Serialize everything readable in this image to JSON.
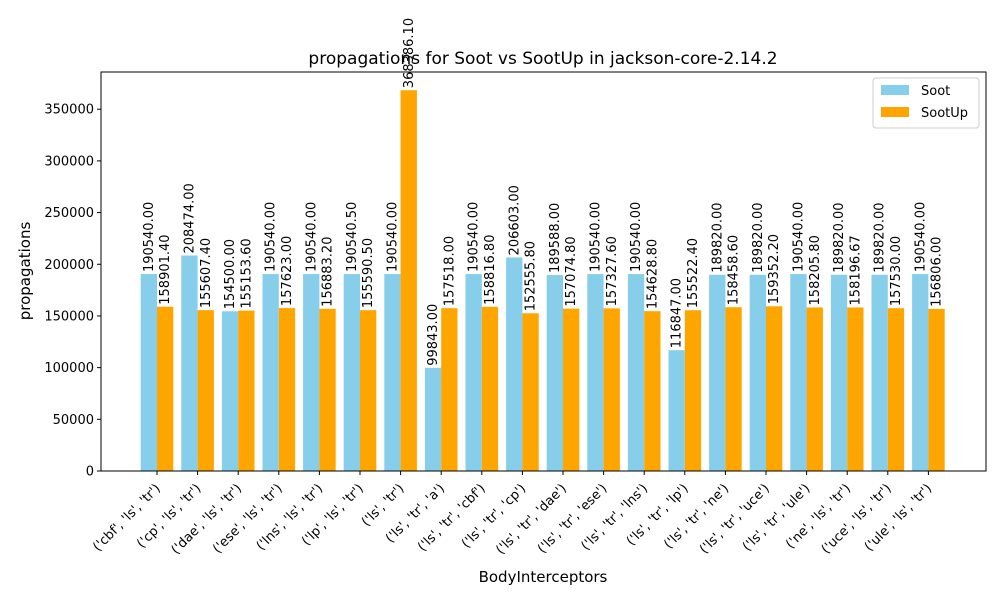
{
  "chart_data": {
    "type": "bar",
    "title": "propagations for Soot vs SootUp in jackson-core-2.14.2",
    "xlabel": "BodyInterceptors",
    "ylabel": "propagations",
    "ylim": [
      0,
      386000
    ],
    "yticks": [
      0,
      50000,
      100000,
      150000,
      200000,
      250000,
      300000,
      350000
    ],
    "ytick_labels": [
      "0",
      "50000",
      "100000",
      "150000",
      "200000",
      "250000",
      "300000",
      "350000"
    ],
    "legend_position": "top-right",
    "grid": false,
    "categories": [
      "('cbf', 'ls', 'tr')",
      "('cp', 'ls', 'tr')",
      "('dae', 'ls', 'tr')",
      "('ese', 'ls', 'tr')",
      "('lns', 'ls', 'tr')",
      "('lp', 'ls', 'tr')",
      "('ls', 'tr')",
      "('ls', 'tr', 'a')",
      "('ls', 'tr', 'cbf')",
      "('ls', 'tr', 'cp')",
      "('ls', 'tr', 'dae')",
      "('ls', 'tr', 'ese')",
      "('ls', 'tr', 'lns')",
      "('ls', 'tr', 'lp')",
      "('ls', 'tr', 'ne')",
      "('ls', 'tr', 'uce')",
      "('ls', 'tr', 'ule')",
      "('ne', 'ls', 'tr')",
      "('uce', 'ls', 'tr')",
      "('ule', 'ls', 'tr')"
    ],
    "series": [
      {
        "name": "Soot",
        "color": "#87ceeb",
        "values": [
          190540.0,
          208474.0,
          154500.0,
          190540.0,
          190540.0,
          190540.5,
          190540.0,
          99843.0,
          190540.0,
          206603.0,
          189588.0,
          190540.0,
          190540.0,
          116847.0,
          189820.0,
          189820.0,
          190540.0,
          189820.0,
          189820.0,
          190540.0
        ],
        "labels": [
          "190540.00",
          "208474.00",
          "154500.00",
          "190540.00",
          "190540.00",
          "190540.50",
          "190540.00",
          "99843.00",
          "190540.00",
          "206603.00",
          "189588.00",
          "190540.00",
          "190540.00",
          "116847.00",
          "189820.00",
          "189820.00",
          "190540.00",
          "189820.00",
          "189820.00",
          "190540.00"
        ]
      },
      {
        "name": "SootUp",
        "color": "#ffa500",
        "values": [
          158901.4,
          155607.4,
          155153.6,
          157623.0,
          156883.2,
          155590.5,
          368386.1,
          157518.0,
          158816.8,
          152555.8,
          157074.8,
          157327.6,
          154628.8,
          155522.4,
          158458.6,
          159352.2,
          158205.8,
          158196.67,
          157530.0,
          156806.0
        ],
        "labels": [
          "158901.40",
          "155607.40",
          "155153.60",
          "157623.00",
          "156883.20",
          "155590.50",
          "368386.10",
          "157518.00",
          "158816.80",
          "152555.80",
          "157074.80",
          "157327.60",
          "154628.80",
          "155522.40",
          "158458.60",
          "159352.20",
          "158205.80",
          "158196.67",
          "157530.00",
          "156806.00"
        ]
      }
    ]
  }
}
